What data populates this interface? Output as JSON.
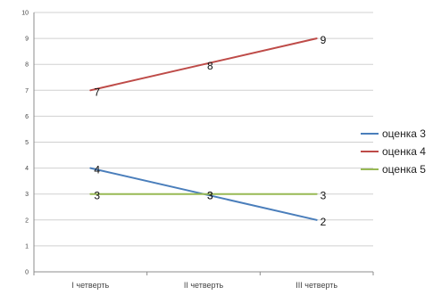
{
  "chart_data": {
    "type": "line",
    "categories": [
      "I четверть",
      "II четверть",
      "III четверть"
    ],
    "ylim": [
      0,
      10
    ],
    "yticks": [
      "0",
      "1",
      "2",
      "3",
      "4",
      "5",
      "6",
      "7",
      "8",
      "9",
      "10"
    ],
    "grid": true,
    "legend": "right",
    "series": [
      {
        "name": "оценка 3",
        "color": "#4a7ebb",
        "values": [
          4,
          3,
          2
        ],
        "labels": [
          "4",
          "3",
          "2"
        ]
      },
      {
        "name": "оценка 4",
        "color": "#be4b48",
        "values": [
          7,
          8,
          9
        ],
        "labels": [
          "7",
          "8",
          "9"
        ]
      },
      {
        "name": "оценка 5",
        "color": "#98b954",
        "values": [
          3,
          3,
          3
        ],
        "labels": [
          "3",
          "3",
          "3"
        ]
      }
    ]
  }
}
